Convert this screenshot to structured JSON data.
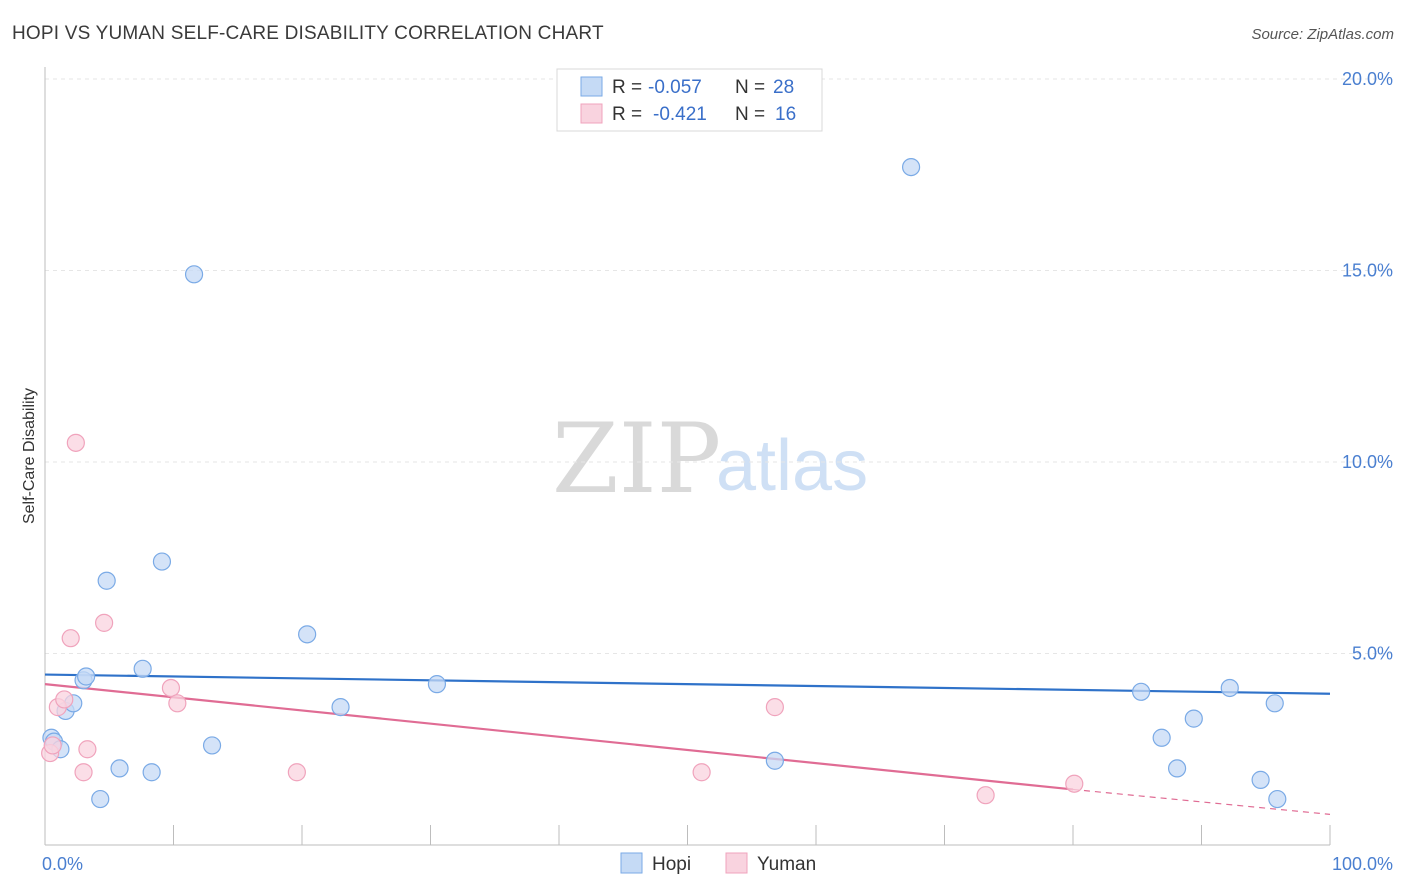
{
  "chart_data": {
    "type": "scatter",
    "title": "HOPI VS YUMAN SELF-CARE DISABILITY CORRELATION CHART",
    "source": "Source: ZipAtlas.com",
    "xlabel": "",
    "ylabel": "Self-Care Disability",
    "xlim": [
      0,
      100
    ],
    "ylim": [
      0,
      20
    ],
    "x_tick_labels": [
      {
        "value": 0,
        "label": "0.0%"
      },
      {
        "value": 100,
        "label": "100.0%"
      }
    ],
    "y_tick_labels": [
      {
        "value": 5,
        "label": "5.0%"
      },
      {
        "value": 10,
        "label": "10.0%"
      },
      {
        "value": 15,
        "label": "15.0%"
      },
      {
        "value": 20,
        "label": "20.0%"
      }
    ],
    "grid": true,
    "watermark": {
      "zip": "ZIP",
      "atlas": "atlas"
    },
    "legend": {
      "position": "top-center",
      "entries": [
        {
          "name": "Hopi",
          "r_label": "R =",
          "r_value": "-0.057",
          "n_label": "N =",
          "n_value": "28"
        },
        {
          "name": "Yuman",
          "r_label": "R =",
          "r_value": "-0.421",
          "n_label": "N =",
          "n_value": "16"
        }
      ]
    },
    "series": [
      {
        "name": "Hopi",
        "color": "#7aaae6",
        "fill": "#c5daf5",
        "line_color": "#2f72c9",
        "trend": [
          [
            0,
            4.45
          ],
          [
            100,
            3.95
          ]
        ],
        "points": [
          [
            0.5,
            2.8
          ],
          [
            0.7,
            2.7
          ],
          [
            1.2,
            2.5
          ],
          [
            1.6,
            3.5
          ],
          [
            2.2,
            3.7
          ],
          [
            3.0,
            4.3
          ],
          [
            3.2,
            4.4
          ],
          [
            4.3,
            1.2
          ],
          [
            4.8,
            6.9
          ],
          [
            5.8,
            2.0
          ],
          [
            7.6,
            4.6
          ],
          [
            8.3,
            1.9
          ],
          [
            9.1,
            7.4
          ],
          [
            11.6,
            14.9
          ],
          [
            13.0,
            2.6
          ],
          [
            20.4,
            5.5
          ],
          [
            23.0,
            3.6
          ],
          [
            30.5,
            4.2
          ],
          [
            56.8,
            2.2
          ],
          [
            67.4,
            17.7
          ],
          [
            85.3,
            4.0
          ],
          [
            86.9,
            2.8
          ],
          [
            88.1,
            2.0
          ],
          [
            89.4,
            3.3
          ],
          [
            92.2,
            4.1
          ],
          [
            94.6,
            1.7
          ],
          [
            95.7,
            3.7
          ],
          [
            95.9,
            1.2
          ]
        ]
      },
      {
        "name": "Yuman",
        "color": "#f0a3bc",
        "fill": "#f9d3df",
        "line_color": "#e06c94",
        "trend": [
          [
            0,
            4.2
          ],
          [
            80,
            1.45
          ]
        ],
        "trend_dashed": [
          [
            80,
            1.45
          ],
          [
            100,
            0.8
          ]
        ],
        "points": [
          [
            0.4,
            2.4
          ],
          [
            0.6,
            2.6
          ],
          [
            1.0,
            3.6
          ],
          [
            1.5,
            3.8
          ],
          [
            2.0,
            5.4
          ],
          [
            2.4,
            10.5
          ],
          [
            3.0,
            1.9
          ],
          [
            3.3,
            2.5
          ],
          [
            4.6,
            5.8
          ],
          [
            9.8,
            4.1
          ],
          [
            10.3,
            3.7
          ],
          [
            19.6,
            1.9
          ],
          [
            51.1,
            1.9
          ],
          [
            56.8,
            3.6
          ],
          [
            73.2,
            1.3
          ],
          [
            80.1,
            1.6
          ]
        ]
      }
    ]
  }
}
